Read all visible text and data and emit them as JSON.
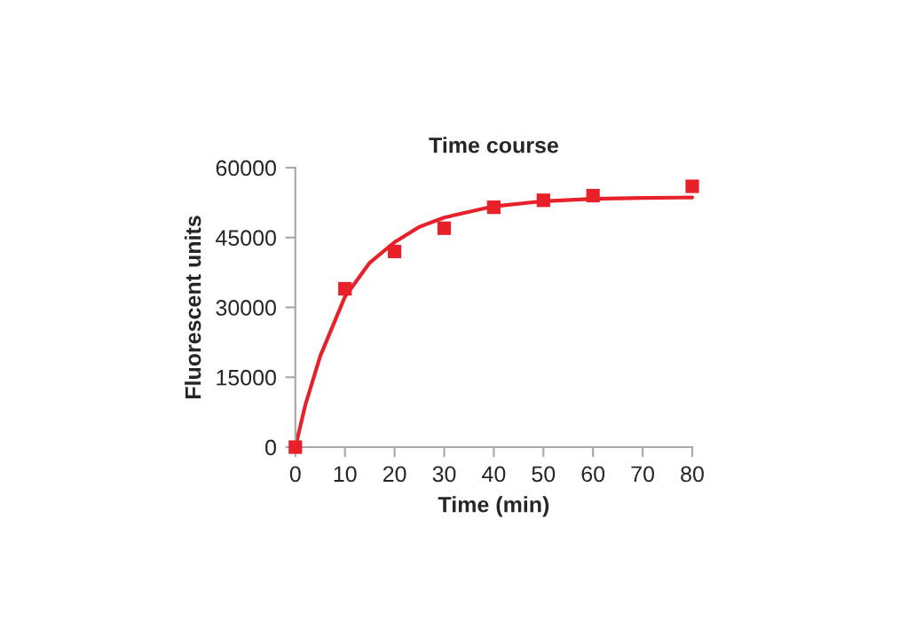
{
  "chart_data": {
    "type": "scatter",
    "title": "Time course",
    "xlabel": "Time (min)",
    "ylabel": "Fluorescent units",
    "xlim": [
      0,
      80
    ],
    "xticks": [
      0,
      10,
      20,
      30,
      40,
      50,
      60,
      70,
      80
    ],
    "ylim": [
      0,
      60000
    ],
    "yticks": [
      0,
      15000,
      30000,
      45000,
      60000
    ],
    "grid": false,
    "legend": false,
    "marker": "square",
    "series": [
      {
        "color": "#e8202a",
        "x": [
          0,
          10,
          20,
          30,
          40,
          50,
          60,
          80
        ],
        "values": [
          0,
          34000,
          42000,
          47000,
          51500,
          53000,
          54000,
          56000
        ]
      },
      {
        "type": "line",
        "color": "#e8202a",
        "marker": "none",
        "x": [
          0,
          2,
          5,
          10,
          15,
          20,
          25,
          30,
          40,
          50,
          60,
          70,
          80
        ],
        "values": [
          0,
          9000,
          19500,
          32300,
          39600,
          44000,
          47300,
          49300,
          51700,
          52800,
          53300,
          53500,
          53600
        ]
      }
    ]
  }
}
